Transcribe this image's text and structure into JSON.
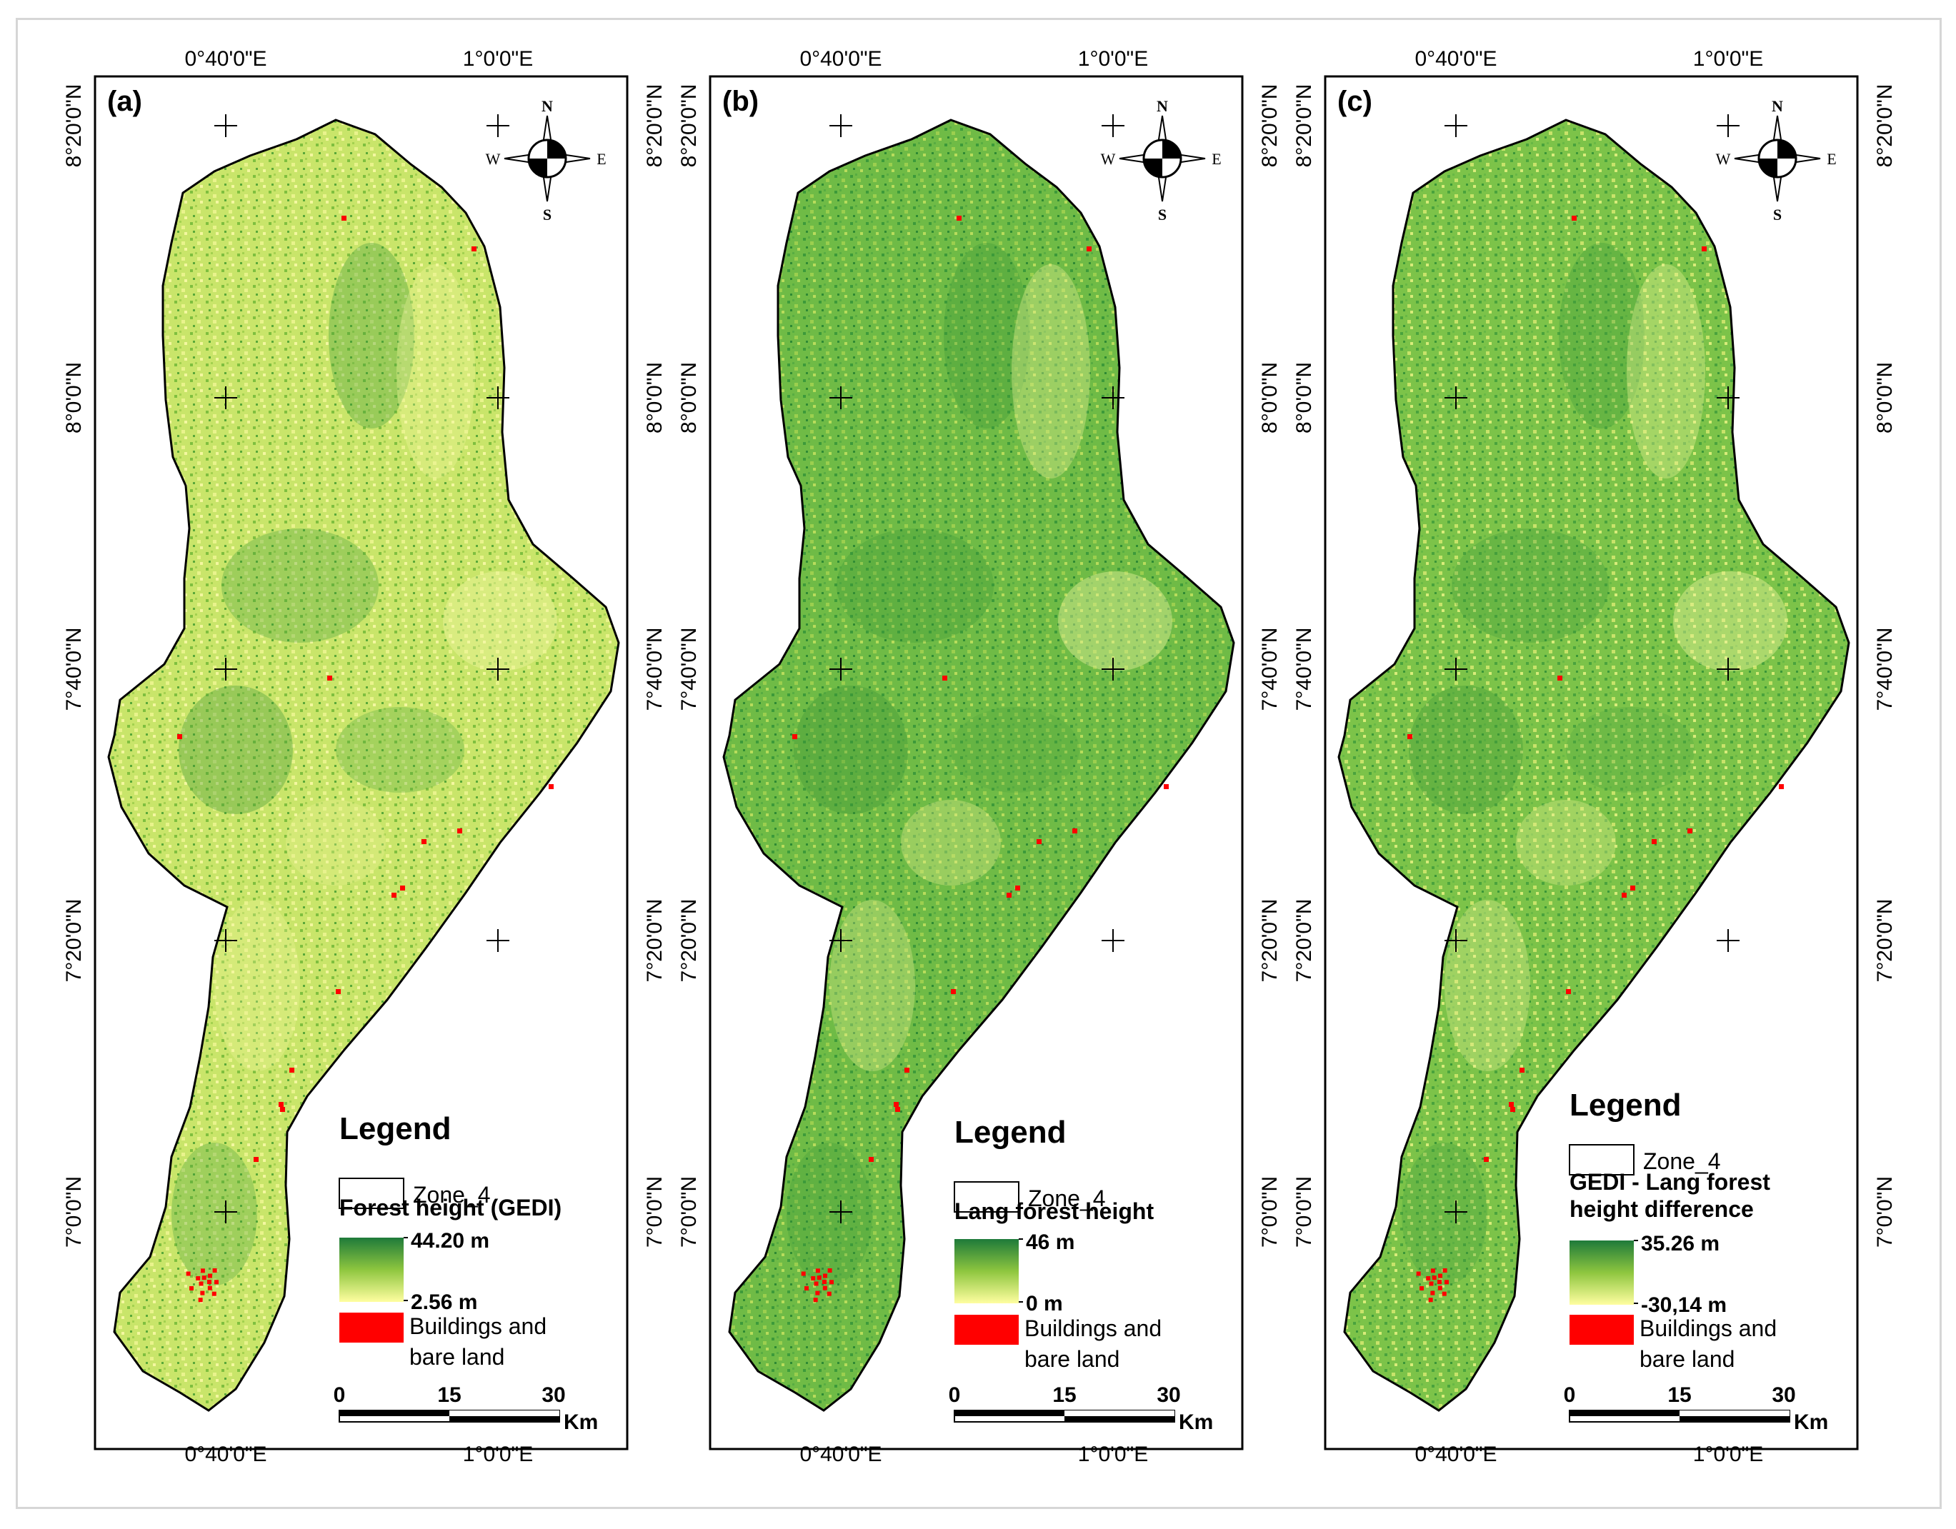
{
  "panels": [
    {
      "id": "a",
      "panel_label": "(a)",
      "legend": {
        "title": "Legend",
        "zone_label": "Zone_4",
        "layer_title_lines": [
          "Forest height (GEDI)"
        ],
        "max_label": "44.20 m",
        "min_label": "2.56 m",
        "buildings_label_lines": [
          "Buildings and",
          "bare land"
        ]
      }
    },
    {
      "id": "b",
      "panel_label": "(b)",
      "legend": {
        "title": "Legend",
        "zone_label": "Zone_4",
        "layer_title_lines": [
          "Lang forest height"
        ],
        "max_label": "46 m",
        "min_label": "0 m",
        "buildings_label_lines": [
          "Buildings and",
          "bare land"
        ]
      }
    },
    {
      "id": "c",
      "panel_label": "(c)",
      "legend": {
        "title": "Legend",
        "zone_label": "Zone_4",
        "layer_title_lines": [
          "GEDI - Lang forest",
          "height difference"
        ],
        "max_label": "35.26 m",
        "min_label": "-30,14 m",
        "buildings_label_lines": [
          "Buildings and",
          "bare land"
        ]
      }
    }
  ],
  "graticule": {
    "lon_labels": [
      "0°40'0\"E",
      "1°0'0\"E"
    ],
    "lat_labels": [
      "8°20'0\"N",
      "8°0'0\"N",
      "7°40'0\"N",
      "7°20'0\"N",
      "7°0'0\"N"
    ]
  },
  "north_arrow": {
    "n": "N",
    "s": "S",
    "e": "E",
    "w": "W"
  },
  "scale_bar": {
    "ticks": [
      "0",
      "15",
      "30"
    ],
    "unit": "Km"
  },
  "colors": {
    "ramp_high": "#1e7a3a",
    "ramp_mid": "#8ec63f",
    "ramp_low": "#fffea0",
    "buildings": "#ff0000",
    "frame": "#000000",
    "outer_frame": "#d6d6d6"
  }
}
